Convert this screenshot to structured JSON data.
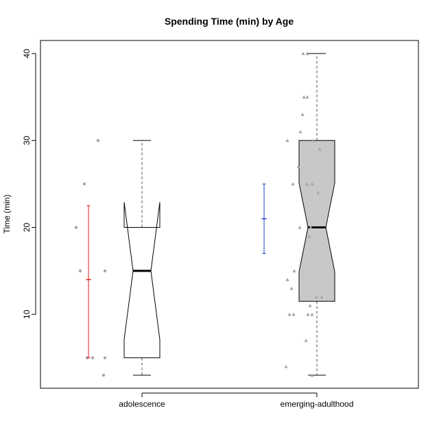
{
  "chart_data": {
    "type": "boxplot",
    "title": "Spending Time (min) by Age",
    "xlabel": "",
    "ylabel": "Time (min)",
    "ylim": [
      1.5,
      41.5
    ],
    "yticks": [
      10,
      20,
      30,
      40
    ],
    "grid": false,
    "notched": true,
    "categories": [
      "adolescence",
      "emerging-adulthood"
    ],
    "boxes": [
      {
        "category": "adolescence",
        "fill": "#ffffff",
        "min": 3,
        "q1": 5,
        "median": 15,
        "q3": 20,
        "max": 30,
        "notch_low": 7.1,
        "notch_high": 22.9,
        "mean": 14,
        "ci_low": 5,
        "ci_high": 22.5,
        "ci_color": "#e41a1c",
        "points": [
          20,
          25,
          30,
          15,
          15,
          5,
          5,
          5,
          3
        ]
      },
      {
        "category": "emerging-adulthood",
        "fill": "#c8c8c8",
        "min": 3,
        "q1": 11.5,
        "median": 20,
        "q3": 30,
        "max": 40,
        "notch_low": 14.9,
        "notch_high": 25.1,
        "mean": 21,
        "ci_low": 17,
        "ci_high": 25,
        "ci_color": "#1f3fbf",
        "points": [
          4,
          14,
          13,
          10,
          10,
          15,
          20,
          30,
          25,
          27,
          31,
          33,
          35,
          35,
          40,
          40,
          30,
          29,
          25,
          25,
          24,
          20,
          19,
          12,
          12,
          11,
          10,
          10,
          7,
          3
        ]
      }
    ],
    "point_color": "#a6a6a6"
  }
}
